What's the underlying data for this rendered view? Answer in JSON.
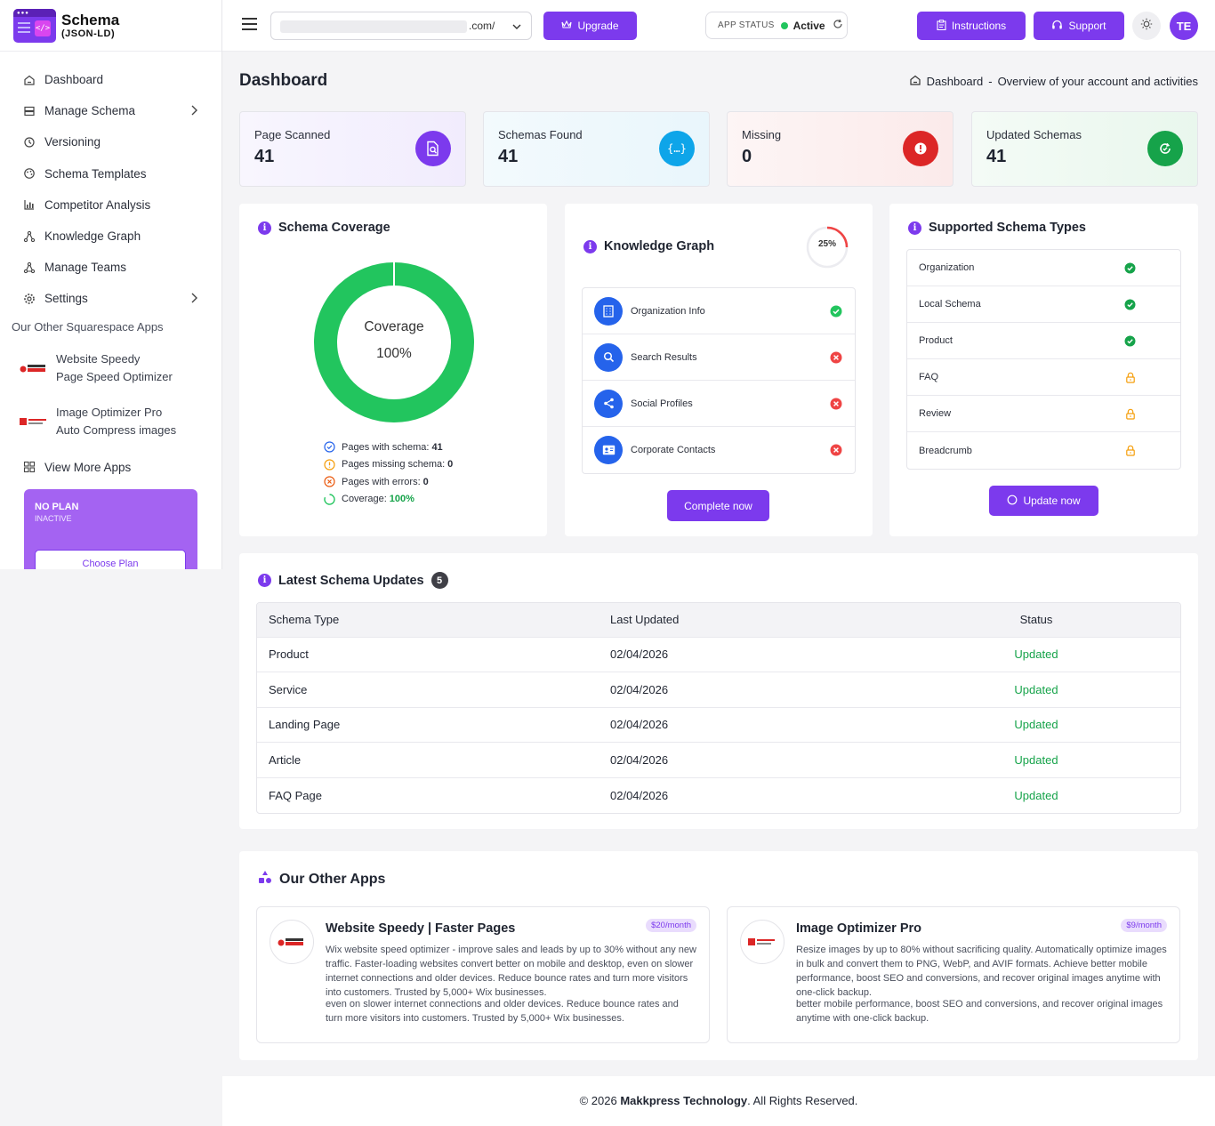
{
  "app": {
    "title": "Schema",
    "subtitle": "(JSON-LD)"
  },
  "sidebar": {
    "items": [
      {
        "label": "Dashboard",
        "icon": "home-icon"
      },
      {
        "label": "Manage Schema",
        "icon": "layers-icon",
        "has_children": true
      },
      {
        "label": "Versioning",
        "icon": "history-icon"
      },
      {
        "label": "Schema Templates",
        "icon": "palette-icon"
      },
      {
        "label": "Competitor Analysis",
        "icon": "bar-chart-icon"
      },
      {
        "label": "Knowledge Graph",
        "icon": "network-icon"
      },
      {
        "label": "Manage Teams",
        "icon": "team-icon"
      },
      {
        "label": "Settings",
        "icon": "gear-icon",
        "has_children": true
      }
    ],
    "other_apps_title": "Our Other Squarespace Apps",
    "other_apps": [
      {
        "line1": "Website Speedy",
        "line2": "Page Speed Optimizer"
      },
      {
        "line1": "Image Optimizer Pro",
        "line2": "Auto Compress images"
      }
    ],
    "view_more": "View More Apps",
    "plan": {
      "name": "NO PLAN",
      "status": "INACTIVE",
      "button": "Choose Plan"
    }
  },
  "header": {
    "url_value": ".com/",
    "upgrade": "Upgrade",
    "app_status_label": "APP STATUS",
    "app_status_value": "Active",
    "instructions": "Instructions",
    "support": "Support",
    "avatar": "TE"
  },
  "page": {
    "title": "Dashboard",
    "breadcrumb_page": "Dashboard",
    "breadcrumb_sep": "-",
    "breadcrumb_desc": "Overview of your account and activities"
  },
  "stats": [
    {
      "label": "Page Scanned",
      "value": "41",
      "color": "#7c3aed"
    },
    {
      "label": "Schemas Found",
      "value": "41",
      "color": "#0ea5e9"
    },
    {
      "label": "Missing",
      "value": "0",
      "color": "#dc2626"
    },
    {
      "label": "Updated Schemas",
      "value": "41",
      "color": "#16a34a"
    }
  ],
  "coverage": {
    "title": "Schema Coverage",
    "center_label": "Coverage",
    "center_value": "100%",
    "percent": 100,
    "legend": [
      {
        "text": "Pages with schema: ",
        "value": "41"
      },
      {
        "text": "Pages missing schema: ",
        "value": "0"
      },
      {
        "text": "Pages with errors: ",
        "value": "0"
      },
      {
        "text": "Coverage: ",
        "value": "100%"
      }
    ]
  },
  "knowledge_graph": {
    "title": "Knowledge Graph",
    "progress_label": "25%",
    "progress": 25,
    "items": [
      {
        "label": "Organization Info",
        "done": true
      },
      {
        "label": "Search Results",
        "done": false
      },
      {
        "label": "Social Profiles",
        "done": false
      },
      {
        "label": "Corporate Contacts",
        "done": false
      }
    ],
    "button": "Complete now"
  },
  "supported_types": {
    "title": "Supported Schema Types",
    "items": [
      {
        "label": "Organization",
        "state": "enabled"
      },
      {
        "label": "Local Schema",
        "state": "enabled"
      },
      {
        "label": "Product",
        "state": "enabled"
      },
      {
        "label": "FAQ",
        "state": "locked"
      },
      {
        "label": "Review",
        "state": "locked"
      },
      {
        "label": "Breadcrumb",
        "state": "locked"
      }
    ],
    "button": "Update now"
  },
  "latest_updates": {
    "title": "Latest Schema Updates",
    "count": "5",
    "columns": [
      "Schema Type",
      "Last Updated",
      "Status"
    ],
    "rows": [
      {
        "type": "Product",
        "date": "02/04/2026",
        "status": "Updated"
      },
      {
        "type": "Service",
        "date": "02/04/2026",
        "status": "Updated"
      },
      {
        "type": "Landing Page",
        "date": "02/04/2026",
        "status": "Updated"
      },
      {
        "type": "Article",
        "date": "02/04/2026",
        "status": "Updated"
      },
      {
        "type": "FAQ Page",
        "date": "02/04/2026",
        "status": "Updated"
      }
    ]
  },
  "other_apps": {
    "title": "Our Other Apps",
    "apps": [
      {
        "name": "Website Speedy | Faster Pages",
        "price": "$20/month",
        "desc": "Wix website speed optimizer - improve sales and leads by up to 30% without any new traffic. Faster-loading websites convert better on mobile and desktop, even on slower internet connections and older devices. Reduce bounce rates and turn more visitors into customers. Trusted by 5,000+ Wix businesses.",
        "desc_repeat": "even on slower internet connections and older devices. Reduce bounce rates and turn more visitors into customers. Trusted by 5,000+ Wix businesses."
      },
      {
        "name": "Image Optimizer Pro",
        "price": "$9/month",
        "desc": "Resize images by up to 80% without sacrificing quality. Automatically optimize images in bulk and convert them to PNG, WebP, and AVIF formats. Achieve better mobile performance, boost SEO and conversions, and recover original images anytime with one-click backup.",
        "desc_repeat": "better mobile performance, boost SEO and conversions, and recover original images anytime with one-click backup."
      }
    ]
  },
  "footer": {
    "prefix": "© 2026 ",
    "company": "Makkpress Technology",
    "suffix": ". All Rights Reserved."
  }
}
